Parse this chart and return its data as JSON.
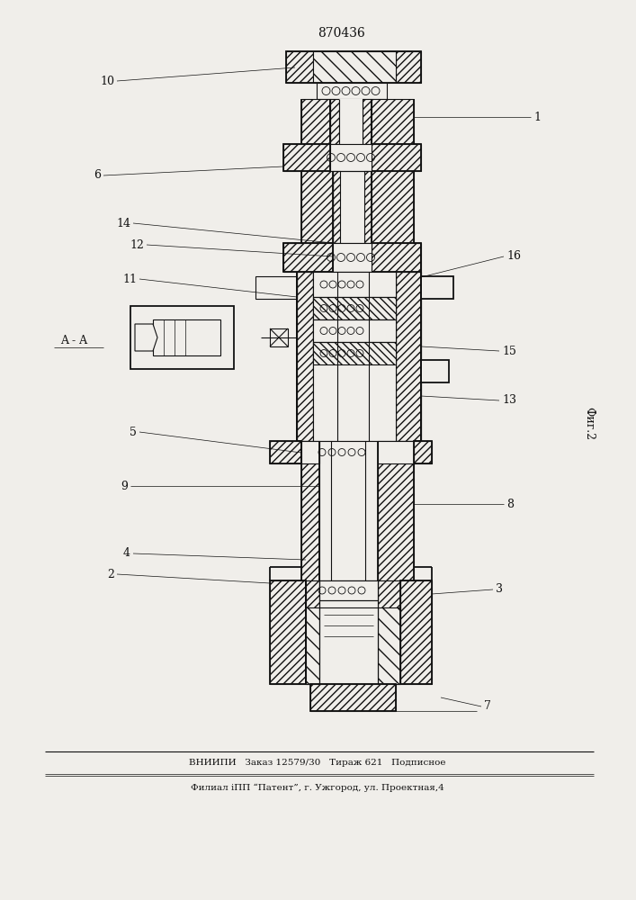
{
  "title": "870436",
  "fig_label": "Фиг.2",
  "section_label": "A - A",
  "footer_line1": "ВНИИПИ   Заказ 12579/30   Тираж 621   Подписное",
  "footer_line2": "Филиал іПП “Патент”, г. Ужгород, ул. Проектная,4",
  "bg_color": "#f0eeea",
  "line_color": "#111111"
}
